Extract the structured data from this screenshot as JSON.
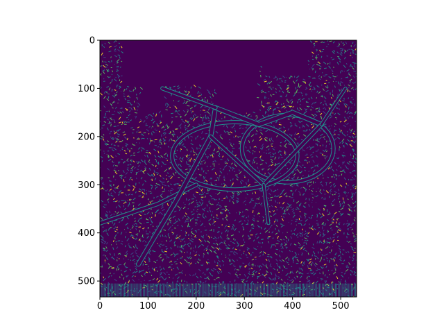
{
  "figure": {
    "kind": "image-plot",
    "description_tag": "edge-detection-map",
    "colormap": "viridis",
    "background_color": "#ffffff",
    "image_background_color": "#440154",
    "edge_colors": [
      "#21908d",
      "#3b528b",
      "#5dc963",
      "#fde725",
      "#2c728e"
    ]
  },
  "axes": {
    "x_ticks": [
      {
        "value": 0,
        "label": "0"
      },
      {
        "value": 100,
        "label": "100"
      },
      {
        "value": 200,
        "label": "200"
      },
      {
        "value": 300,
        "label": "300"
      },
      {
        "value": 400,
        "label": "400"
      },
      {
        "value": 500,
        "label": "500"
      }
    ],
    "y_ticks": [
      {
        "value": 0,
        "label": "0"
      },
      {
        "value": 100,
        "label": "100"
      },
      {
        "value": 200,
        "label": "200"
      },
      {
        "value": 300,
        "label": "300"
      },
      {
        "value": 400,
        "label": "400"
      },
      {
        "value": 500,
        "label": "500"
      }
    ],
    "xlim": [
      0,
      533
    ],
    "ylim": [
      533,
      0
    ]
  }
}
